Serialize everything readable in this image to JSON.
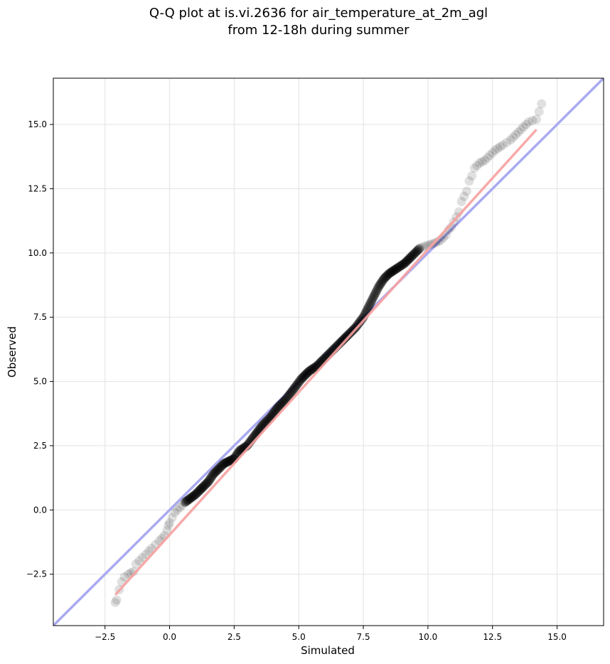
{
  "chart_data": {
    "type": "scatter",
    "title": "Q-Q plot at is.vi.2636 for air_temperature_at_2m_agl",
    "subtitle": "from 12-18h during summer",
    "xlabel": "Simulated",
    "ylabel": "Observed",
    "xlim": [
      -4.5,
      16.8
    ],
    "ylim": [
      -4.5,
      16.8
    ],
    "x_ticks": [
      -2.5,
      0.0,
      2.5,
      5.0,
      7.5,
      10.0,
      12.5,
      15.0
    ],
    "x_tick_labels": [
      "−2.5",
      "0.0",
      "2.5",
      "5.0",
      "7.5",
      "10.0",
      "12.5",
      "15.0"
    ],
    "y_ticks": [
      -2.5,
      0.0,
      2.5,
      5.0,
      7.5,
      10.0,
      12.5,
      15.0
    ],
    "y_tick_labels": [
      "−2.5",
      "0.0",
      "2.5",
      "5.0",
      "7.5",
      "10.0",
      "12.5",
      "15.0"
    ],
    "grid": true,
    "series": [
      {
        "kind": "quantile-points",
        "color": "#000000",
        "x": [
          -2.1,
          -2.05,
          -1.95,
          -1.85,
          -1.75,
          -1.6,
          -1.4,
          -1.3,
          -0.8,
          -0.7,
          -0.4,
          -0.2,
          -0.1,
          -0.05,
          0.0,
          0.1,
          0.2,
          0.3,
          0.4,
          0.5,
          0.6,
          0.8,
          1.0,
          1.2,
          1.3,
          1.5,
          1.7,
          1.9,
          2.1,
          2.3,
          2.5,
          2.7,
          3.0,
          3.3,
          3.6,
          3.9,
          4.2,
          4.5,
          4.8,
          5.1,
          5.4,
          5.7,
          6.0,
          6.3,
          6.6,
          6.9,
          7.2,
          7.5,
          7.7,
          7.9,
          8.1,
          8.3,
          8.5,
          8.8,
          9.1,
          9.4,
          9.7,
          10.0,
          10.3,
          10.5,
          10.6,
          10.7,
          10.8,
          10.9,
          11.0,
          11.2,
          11.3,
          11.5,
          11.6,
          11.7,
          11.8,
          12.0,
          12.2,
          12.4,
          12.6,
          12.9,
          13.2,
          13.4,
          13.6,
          13.9,
          14.2,
          14.4
        ],
        "y": [
          -3.6,
          -3.5,
          -3.1,
          -2.8,
          -2.6,
          -2.5,
          -2.4,
          -2.1,
          -1.6,
          -1.5,
          -1.2,
          -1.0,
          -0.8,
          -0.6,
          -0.5,
          -0.3,
          -0.1,
          0.0,
          0.1,
          0.2,
          0.3,
          0.45,
          0.6,
          0.8,
          0.9,
          1.1,
          1.4,
          1.6,
          1.8,
          1.9,
          2.0,
          2.3,
          2.5,
          2.9,
          3.3,
          3.6,
          4.0,
          4.3,
          4.7,
          5.1,
          5.4,
          5.6,
          5.9,
          6.2,
          6.5,
          6.8,
          7.1,
          7.5,
          7.9,
          8.3,
          8.7,
          9.0,
          9.2,
          9.4,
          9.6,
          9.9,
          10.2,
          10.3,
          10.4,
          10.5,
          10.6,
          10.7,
          10.9,
          11.0,
          11.2,
          11.6,
          12.0,
          12.4,
          12.8,
          13.0,
          13.3,
          13.5,
          13.6,
          13.8,
          14.0,
          14.2,
          14.4,
          14.6,
          14.8,
          15.1,
          15.2,
          15.8
        ]
      },
      {
        "kind": "fit-line",
        "color": "#f7a1a1",
        "x": [
          -2.1,
          14.2
        ],
        "y": [
          -3.3,
          14.8
        ]
      },
      {
        "kind": "reference-line",
        "color": "#a9aaf0",
        "x": [
          -4.5,
          16.8
        ],
        "y": [
          -4.5,
          16.8
        ]
      }
    ]
  }
}
